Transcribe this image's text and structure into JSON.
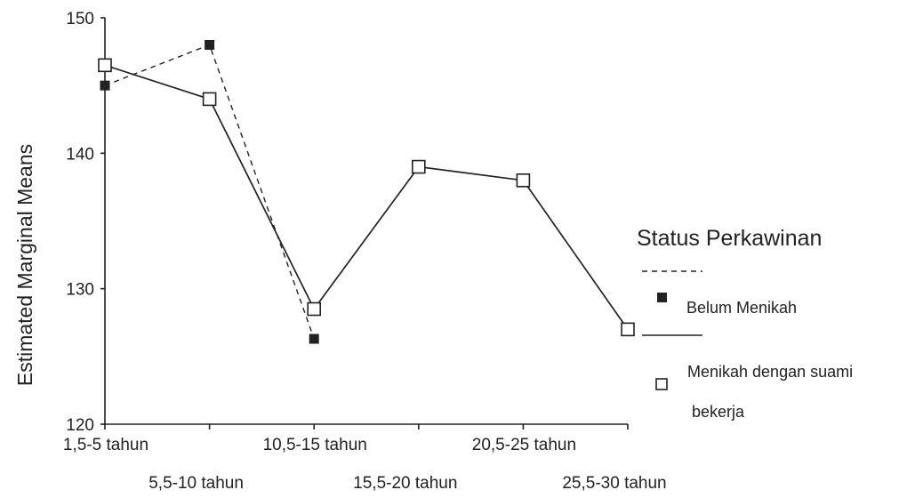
{
  "chart_data": {
    "type": "line",
    "title": "",
    "xlabel": "",
    "ylabel": "Estimated Marginal Means",
    "ylim": [
      120,
      150
    ],
    "yticks": [
      120,
      130,
      140,
      150
    ],
    "grid": false,
    "legend_placement": "right",
    "categories": [
      "1,5-5 tahun",
      "5,5-10 tahun",
      "10,5-15 tahun",
      "15,5-20 tahun",
      "20,5-25 tahun",
      "25,5-30 tahun"
    ],
    "legend_title": "Status Perkawinan",
    "series": [
      {
        "name": "Belum Menikah",
        "line_style": "dashed",
        "marker": "filled-square",
        "values": [
          145,
          148,
          126.3,
          null,
          null,
          null
        ]
      },
      {
        "name": "Menikah dengan suami bekerja",
        "name_lines": [
          "Menikah dengan suami",
          "bekerja"
        ],
        "line_style": "solid",
        "marker": "open-square",
        "values": [
          146.5,
          144,
          128.5,
          139,
          138,
          127
        ]
      }
    ]
  }
}
